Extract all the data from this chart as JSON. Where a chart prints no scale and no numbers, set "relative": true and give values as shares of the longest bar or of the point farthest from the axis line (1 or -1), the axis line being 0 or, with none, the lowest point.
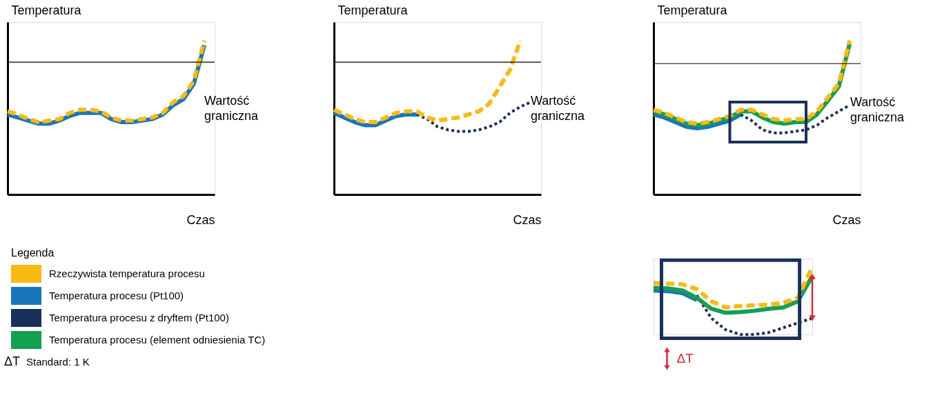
{
  "chart_data": [
    {
      "type": "line",
      "relative": true,
      "xlabel": "Czas",
      "ylabel": "Temperatura",
      "legend_title": "Legenda",
      "legend": "bottom",
      "categories": [
        null,
        null,
        null,
        null,
        null,
        null,
        null,
        null,
        null,
        null,
        null,
        null,
        null,
        null,
        null,
        null,
        null,
        null,
        null,
        null,
        null
      ],
      "series": [
        {
          "name": "Temperatura procesu (Pt100)",
          "color": "#1b75bc",
          "line_style": "solid",
          "values": [
            0.52,
            0.5,
            0.48,
            0.46,
            0.46,
            0.48,
            0.51,
            0.53,
            0.53,
            0.53,
            0.49,
            0.47,
            0.47,
            0.48,
            0.49,
            0.52,
            0.58,
            0.62,
            0.72,
            0.97,
            null
          ]
        },
        {
          "name": "Rzeczywista temperatura procesu",
          "color": "#fbb914",
          "line_style": "dashed",
          "values": [
            0.54,
            0.52,
            0.49,
            0.47,
            0.48,
            0.49,
            0.53,
            0.55,
            0.55,
            0.54,
            0.5,
            0.48,
            0.48,
            0.49,
            0.5,
            0.53,
            0.6,
            0.64,
            0.74,
            1.0,
            null
          ]
        }
      ],
      "ref_lines": [
        {
          "axis": "y",
          "value": 0.86,
          "label": "Wartość graniczna",
          "color": "#000000"
        }
      ],
      "annotations": [
        "ΔT Standard: 1 K"
      ]
    },
    {
      "type": "line",
      "relative": true,
      "xlabel": "Czas",
      "ylabel": "Temperatura",
      "categories": [
        null,
        null,
        null,
        null,
        null,
        null,
        null,
        null,
        null,
        null,
        null,
        null,
        null,
        null,
        null,
        null,
        null,
        null,
        null,
        null,
        null
      ],
      "series": [
        {
          "name": "Temperatura procesu (Pt100)",
          "color": "#1b75bc",
          "line_style": "solid",
          "values": [
            0.53,
            0.5,
            0.47,
            0.45,
            0.45,
            0.48,
            0.51,
            0.52,
            0.52,
            null,
            null,
            null,
            null,
            null,
            null,
            null,
            null,
            null,
            null,
            null,
            null
          ]
        },
        {
          "name": "Temperatura procesu z dryftem (Pt100)",
          "color": "#1a2f5a",
          "line_style": "dotted",
          "values": [
            null,
            null,
            null,
            null,
            null,
            null,
            null,
            null,
            0.52,
            0.49,
            0.44,
            0.42,
            0.41,
            0.41,
            0.42,
            0.44,
            0.47,
            0.53,
            0.57,
            0.6,
            null
          ]
        },
        {
          "name": "Rzeczywista temperatura procesu",
          "color": "#fbb914",
          "line_style": "dashed",
          "values": [
            0.55,
            0.52,
            0.49,
            0.47,
            0.47,
            0.5,
            0.53,
            0.54,
            0.54,
            0.5,
            0.48,
            0.49,
            0.5,
            0.52,
            0.54,
            0.59,
            0.7,
            0.81,
            1.0,
            null,
            null
          ]
        }
      ],
      "ref_lines": [
        {
          "axis": "y",
          "value": 0.86,
          "label": "Wartość graniczna",
          "color": "#000000"
        }
      ]
    },
    {
      "type": "line",
      "relative": true,
      "xlabel": "Czas",
      "ylabel": "Temperatura",
      "categories": [
        null,
        null,
        null,
        null,
        null,
        null,
        null,
        null,
        null,
        null,
        null,
        null,
        null,
        null,
        null,
        null,
        null,
        null,
        null,
        null
      ],
      "series": [
        {
          "name": "Temperatura procesu (Pt100)",
          "color": "#1b75bc",
          "line_style": "solid",
          "values": [
            0.52,
            0.5,
            0.47,
            0.44,
            0.43,
            0.44,
            0.46,
            0.48,
            0.52,
            null,
            null,
            null,
            null,
            null,
            null,
            null,
            null,
            null,
            null,
            null
          ]
        },
        {
          "name": "Temperatura procesu z dryftem (Pt100)",
          "color": "#1a2f5a",
          "line_style": "dotted",
          "values": [
            null,
            null,
            null,
            null,
            null,
            null,
            null,
            null,
            0.52,
            0.48,
            0.42,
            0.4,
            0.4,
            0.41,
            0.42,
            0.45,
            0.5,
            0.54,
            0.58,
            null
          ]
        },
        {
          "name": "Temperatura procesu (element odniesienia TC)",
          "color": "#13a050",
          "line_style": "solid",
          "values": [
            0.54,
            0.52,
            0.49,
            0.46,
            0.45,
            0.46,
            0.48,
            0.5,
            0.54,
            0.54,
            0.5,
            0.47,
            0.46,
            0.47,
            0.47,
            0.52,
            0.61,
            0.7,
            0.98,
            null
          ]
        },
        {
          "name": "Rzeczywista temperatura procesu",
          "color": "#fbb914",
          "line_style": "dashed",
          "values": [
            0.55,
            0.53,
            0.5,
            0.47,
            0.46,
            0.47,
            0.49,
            0.51,
            0.55,
            0.55,
            0.52,
            0.49,
            0.48,
            0.49,
            0.49,
            0.54,
            0.63,
            0.72,
            1.0,
            null
          ]
        }
      ],
      "ref_lines": [
        {
          "axis": "y",
          "value": 0.85,
          "label": "Wartość graniczna",
          "color": "#000000"
        }
      ]
    },
    {
      "type": "line",
      "relative": true,
      "categories": [
        null,
        null,
        null,
        null,
        null,
        null,
        null,
        null,
        null,
        null,
        null,
        null
      ],
      "series": [
        {
          "name": "Temperatura procesu (Pt100)",
          "color": "#1b75bc",
          "line_style": "solid",
          "values": [
            0.65,
            0.64,
            0.61,
            0.51,
            null,
            null,
            null,
            null,
            null,
            null,
            null,
            null
          ]
        },
        {
          "name": "Temperatura procesu z dryftem (Pt100)",
          "color": "#1a2f5a",
          "line_style": "dotted",
          "values": [
            null,
            null,
            null,
            0.58,
            0.24,
            0.07,
            0.0,
            0.0,
            0.03,
            0.1,
            0.17,
            0.24
          ]
        },
        {
          "name": "Temperatura procesu (element odniesienia TC)",
          "color": "#13a050",
          "line_style": "solid",
          "values": [
            0.69,
            0.68,
            0.65,
            0.54,
            0.38,
            0.32,
            0.33,
            0.35,
            0.38,
            0.4,
            0.49,
            0.86
          ]
        },
        {
          "name": "Rzeczywista temperatura procesu",
          "color": "#fbb914",
          "line_style": "dashed",
          "values": [
            0.76,
            0.75,
            0.74,
            0.67,
            0.49,
            0.4,
            0.42,
            0.43,
            0.44,
            0.47,
            0.54,
            1.0
          ]
        }
      ],
      "annotations": [
        "ΔT"
      ]
    }
  ]
}
